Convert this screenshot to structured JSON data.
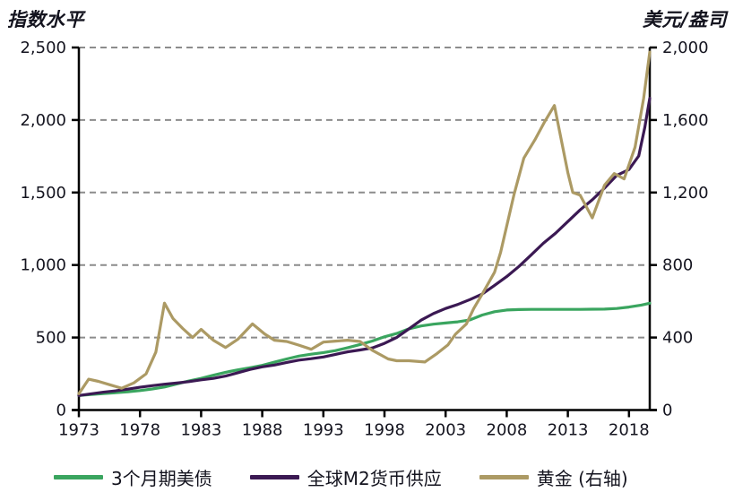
{
  "titles": {
    "left_axis_title": "指数水平",
    "right_axis_title": "美元/盎司"
  },
  "legend": {
    "items": [
      {
        "label": "3个月期美债",
        "color": "#3aa55f"
      },
      {
        "label": "全球M2货币供应",
        "color": "#3b1953"
      },
      {
        "label": "黄金 (右轴)",
        "color": "#ac9a64"
      }
    ]
  },
  "colors": {
    "axis": "#000000",
    "gridline": "#8c8c8c",
    "text": "#14141f",
    "tbill_green": "#3aa55f",
    "m2_purple": "#3b1953",
    "gold_tan": "#ac9a64"
  },
  "chart_data": {
    "type": "line",
    "title": "",
    "left_axis_label": "指数水平",
    "right_axis_label": "美元/盎司",
    "grid": "horizontal-dashed",
    "legend_position": "bottom",
    "x_axis": {
      "min": 1973,
      "max": 2019.7,
      "tick_years": [
        1973,
        1978,
        1983,
        1988,
        1993,
        1998,
        2003,
        2008,
        2013,
        2018
      ]
    },
    "y_left": {
      "min": 0,
      "max": 2500,
      "tick_values": [
        0,
        500,
        1000,
        1500,
        2000,
        2500
      ],
      "tick_labels": [
        "0",
        "500",
        "1,000",
        "1,500",
        "2,000",
        "2,500"
      ]
    },
    "y_right": {
      "min": 0,
      "max": 2000,
      "tick_values": [
        0,
        400,
        800,
        1200,
        1600,
        2000
      ],
      "tick_labels": [
        "0",
        "400",
        "800",
        "1,200",
        "1,600",
        "2,000"
      ]
    },
    "series": [
      {
        "name": "3个月期美债",
        "axis": "left",
        "color": "#3aa55f",
        "points": [
          [
            1973,
            100
          ],
          [
            1974,
            107
          ],
          [
            1975,
            113
          ],
          [
            1976,
            119
          ],
          [
            1977,
            126
          ],
          [
            1978,
            134
          ],
          [
            1979,
            145
          ],
          [
            1980,
            159
          ],
          [
            1981,
            180
          ],
          [
            1982,
            200
          ],
          [
            1983,
            218
          ],
          [
            1984,
            240
          ],
          [
            1985,
            260
          ],
          [
            1986,
            277
          ],
          [
            1987,
            292
          ],
          [
            1988,
            308
          ],
          [
            1989,
            330
          ],
          [
            1990,
            352
          ],
          [
            1991,
            372
          ],
          [
            1992,
            385
          ],
          [
            1993,
            396
          ],
          [
            1994,
            410
          ],
          [
            1995,
            430
          ],
          [
            1996,
            452
          ],
          [
            1997,
            476
          ],
          [
            1998,
            505
          ],
          [
            1999,
            528
          ],
          [
            2000,
            560
          ],
          [
            2001,
            580
          ],
          [
            2002,
            592
          ],
          [
            2003,
            600
          ],
          [
            2004,
            608
          ],
          [
            2005,
            622
          ],
          [
            2006,
            655
          ],
          [
            2007,
            678
          ],
          [
            2008,
            690
          ],
          [
            2009,
            693
          ],
          [
            2010,
            694
          ],
          [
            2011,
            694
          ],
          [
            2012,
            694
          ],
          [
            2013,
            694
          ],
          [
            2014,
            694
          ],
          [
            2015,
            695
          ],
          [
            2016,
            696
          ],
          [
            2017,
            700
          ],
          [
            2018,
            710
          ],
          [
            2019,
            724
          ],
          [
            2019.7,
            737
          ]
        ]
      },
      {
        "name": "全球M2货币供应",
        "axis": "left",
        "color": "#3b1953",
        "points": [
          [
            1973,
            100
          ],
          [
            1974,
            112
          ],
          [
            1975,
            123
          ],
          [
            1976,
            132
          ],
          [
            1977,
            144
          ],
          [
            1978,
            157
          ],
          [
            1979,
            168
          ],
          [
            1980,
            178
          ],
          [
            1981,
            186
          ],
          [
            1982,
            196
          ],
          [
            1983,
            208
          ],
          [
            1984,
            218
          ],
          [
            1985,
            234
          ],
          [
            1986,
            257
          ],
          [
            1987,
            280
          ],
          [
            1988,
            298
          ],
          [
            1989,
            310
          ],
          [
            1990,
            328
          ],
          [
            1991,
            344
          ],
          [
            1992,
            354
          ],
          [
            1993,
            366
          ],
          [
            1994,
            384
          ],
          [
            1995,
            402
          ],
          [
            1996,
            414
          ],
          [
            1997,
            428
          ],
          [
            1998,
            460
          ],
          [
            1999,
            500
          ],
          [
            2000,
            560
          ],
          [
            2001,
            620
          ],
          [
            2002,
            665
          ],
          [
            2003,
            700
          ],
          [
            2004,
            728
          ],
          [
            2005,
            762
          ],
          [
            2006,
            800
          ],
          [
            2007,
            860
          ],
          [
            2008,
            920
          ],
          [
            2009,
            990
          ],
          [
            2010,
            1070
          ],
          [
            2011,
            1150
          ],
          [
            2012,
            1220
          ],
          [
            2013,
            1300
          ],
          [
            2014,
            1380
          ],
          [
            2015,
            1450
          ],
          [
            2016,
            1530
          ],
          [
            2017,
            1618
          ],
          [
            2018,
            1658
          ],
          [
            2018.8,
            1752
          ],
          [
            2019.3,
            1950
          ],
          [
            2019.7,
            2150
          ]
        ]
      },
      {
        "name": "黄金 (右轴)",
        "axis": "right",
        "color": "#ac9a64",
        "points": [
          [
            1973,
            90
          ],
          [
            1973.8,
            170
          ],
          [
            1974.6,
            158
          ],
          [
            1975.5,
            140
          ],
          [
            1976.5,
            120
          ],
          [
            1977.5,
            150
          ],
          [
            1978.5,
            200
          ],
          [
            1979.3,
            320
          ],
          [
            1980,
            590
          ],
          [
            1980.7,
            505
          ],
          [
            1981.5,
            450
          ],
          [
            1982.3,
            400
          ],
          [
            1983,
            445
          ],
          [
            1984,
            385
          ],
          [
            1985,
            345
          ],
          [
            1986,
            390
          ],
          [
            1987.2,
            475
          ],
          [
            1988.2,
            420
          ],
          [
            1989,
            385
          ],
          [
            1990,
            378
          ],
          [
            1991,
            358
          ],
          [
            1992,
            335
          ],
          [
            1993,
            375
          ],
          [
            1994,
            380
          ],
          [
            1995,
            385
          ],
          [
            1996,
            378
          ],
          [
            1997,
            330
          ],
          [
            1998.3,
            282
          ],
          [
            1999,
            272
          ],
          [
            2000,
            272
          ],
          [
            2001.3,
            265
          ],
          [
            2002.3,
            312
          ],
          [
            2003.2,
            360
          ],
          [
            2003.8,
            418
          ],
          [
            2004.7,
            475
          ],
          [
            2005.3,
            560
          ],
          [
            2006,
            640
          ],
          [
            2007,
            760
          ],
          [
            2007.5,
            870
          ],
          [
            2008.6,
            1190
          ],
          [
            2009.4,
            1390
          ],
          [
            2010.3,
            1490
          ],
          [
            2011.1,
            1590
          ],
          [
            2011.9,
            1680
          ],
          [
            2013,
            1310
          ],
          [
            2013.4,
            1200
          ],
          [
            2014,
            1185
          ],
          [
            2015,
            1060
          ],
          [
            2016,
            1240
          ],
          [
            2016.8,
            1305
          ],
          [
            2017.6,
            1275
          ],
          [
            2018.5,
            1450
          ],
          [
            2019.2,
            1720
          ],
          [
            2019.7,
            1975
          ]
        ]
      }
    ]
  }
}
